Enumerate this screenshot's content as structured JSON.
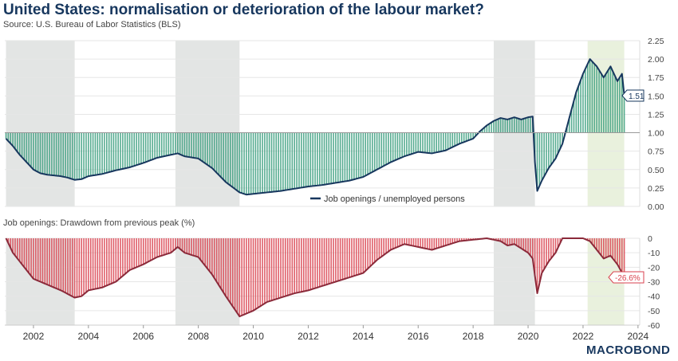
{
  "title": "United States: normalisation or deterioration of the labour market?",
  "subtitle": "Source: U.S. Bureau of Labor Statistics (BLS)",
  "logo": "MACROBOND",
  "colors": {
    "title": "#17375e",
    "ratio_line": "#17375e",
    "ratio_fill": "#3a9e7e",
    "drawdown_line": "#8b2a3a",
    "drawdown_fill": "#d9424f",
    "recession_shade": "#e3e5e4",
    "highlight_shade": "#e9f1dd"
  },
  "chart_data": [
    {
      "type": "area",
      "title": "",
      "legend": "Job openings / unemployed persons",
      "legend_placement": "bottom-center",
      "baseline": 1.0,
      "ylim": [
        0,
        2.25
      ],
      "yticks": [
        "0.00",
        "0.25",
        "0.50",
        "0.75",
        "1.00",
        "1.25",
        "1.50",
        "1.75",
        "2.00",
        "2.25"
      ],
      "last_value_label": "1.51",
      "grid": true,
      "shaded_periods": [
        {
          "start": "2001-01",
          "end": "2003-07",
          "kind": "recession_shade"
        },
        {
          "start": "2007-03",
          "end": "2009-07",
          "kind": "recession_shade"
        },
        {
          "start": "2018-10",
          "end": "2020-04",
          "kind": "recession_shade"
        },
        {
          "start": "2022-03",
          "end": "2023-07",
          "kind": "highlight_shade"
        }
      ],
      "series": [
        {
          "name": "Job openings / unemployed persons",
          "x": [
            "2001-01",
            "2001-04",
            "2001-07",
            "2001-10",
            "2002-01",
            "2002-04",
            "2002-07",
            "2002-10",
            "2003-01",
            "2003-04",
            "2003-07",
            "2003-10",
            "2004-01",
            "2004-07",
            "2005-01",
            "2005-07",
            "2006-01",
            "2006-07",
            "2007-01",
            "2007-04",
            "2007-07",
            "2008-01",
            "2008-07",
            "2009-01",
            "2009-07",
            "2009-10",
            "2010-01",
            "2010-07",
            "2011-01",
            "2011-07",
            "2012-01",
            "2012-07",
            "2013-01",
            "2013-07",
            "2014-01",
            "2014-07",
            "2015-01",
            "2015-07",
            "2016-01",
            "2016-07",
            "2017-01",
            "2017-07",
            "2018-01",
            "2018-04",
            "2018-07",
            "2018-10",
            "2019-01",
            "2019-04",
            "2019-07",
            "2019-10",
            "2020-01",
            "2020-03",
            "2020-04",
            "2020-05",
            "2020-07",
            "2020-10",
            "2021-01",
            "2021-04",
            "2021-07",
            "2021-10",
            "2022-01",
            "2022-04",
            "2022-07",
            "2022-10",
            "2023-01",
            "2023-04",
            "2023-06",
            "2023-07"
          ],
          "y": [
            0.92,
            0.82,
            0.7,
            0.6,
            0.5,
            0.45,
            0.43,
            0.42,
            0.41,
            0.39,
            0.36,
            0.37,
            0.41,
            0.44,
            0.49,
            0.53,
            0.59,
            0.66,
            0.7,
            0.72,
            0.68,
            0.65,
            0.52,
            0.33,
            0.19,
            0.16,
            0.17,
            0.19,
            0.21,
            0.24,
            0.27,
            0.29,
            0.32,
            0.35,
            0.4,
            0.5,
            0.6,
            0.68,
            0.74,
            0.72,
            0.76,
            0.85,
            0.92,
            1.02,
            1.1,
            1.16,
            1.2,
            1.18,
            1.21,
            1.18,
            1.21,
            1.22,
            0.6,
            0.21,
            0.35,
            0.52,
            0.65,
            0.85,
            1.2,
            1.55,
            1.8,
            2.0,
            1.9,
            1.75,
            1.9,
            1.7,
            1.8,
            1.51
          ]
        }
      ]
    },
    {
      "type": "area",
      "title": "Job openings: Drawdown from previous peak (%)",
      "ylim": [
        -60,
        0
      ],
      "yticks": [
        "0",
        "-10",
        "-20",
        "-30",
        "-40",
        "-50",
        "-60"
      ],
      "xticks": [
        "2002",
        "2004",
        "2006",
        "2008",
        "2010",
        "2012",
        "2014",
        "2016",
        "2018",
        "2020",
        "2022",
        "2024"
      ],
      "last_value_label": "-26.6%",
      "grid": true,
      "series": [
        {
          "x": [
            "2001-01",
            "2001-04",
            "2001-07",
            "2002-01",
            "2002-07",
            "2003-01",
            "2003-07",
            "2003-10",
            "2004-01",
            "2004-07",
            "2005-01",
            "2005-07",
            "2006-01",
            "2006-07",
            "2007-01",
            "2007-04",
            "2007-07",
            "2008-01",
            "2008-07",
            "2009-01",
            "2009-07",
            "2009-10",
            "2010-01",
            "2010-07",
            "2011-01",
            "2011-07",
            "2012-01",
            "2012-07",
            "2013-01",
            "2013-07",
            "2014-01",
            "2014-07",
            "2015-01",
            "2015-07",
            "2016-01",
            "2016-07",
            "2017-01",
            "2017-07",
            "2018-01",
            "2018-07",
            "2019-01",
            "2019-04",
            "2019-07",
            "2019-10",
            "2020-01",
            "2020-03",
            "2020-05",
            "2020-07",
            "2020-10",
            "2021-01",
            "2021-04",
            "2022-01",
            "2022-04",
            "2022-07",
            "2022-10",
            "2023-01",
            "2023-04",
            "2023-07"
          ],
          "y": [
            0,
            -10,
            -16,
            -28,
            -32,
            -36,
            -41,
            -40,
            -36,
            -34,
            -30,
            -22,
            -18,
            -13,
            -10,
            -6,
            -10,
            -13,
            -25,
            -40,
            -54,
            -52,
            -50,
            -44,
            -41,
            -38,
            -36,
            -33,
            -30,
            -27,
            -24,
            -15,
            -8,
            -4,
            -6,
            -8,
            -5,
            -2,
            -1,
            0,
            -2,
            -5,
            -4,
            -7,
            -10,
            -14,
            -38,
            -24,
            -16,
            -10,
            0,
            0,
            -2,
            -8,
            -14,
            -12,
            -18,
            -26.6
          ]
        }
      ]
    }
  ]
}
